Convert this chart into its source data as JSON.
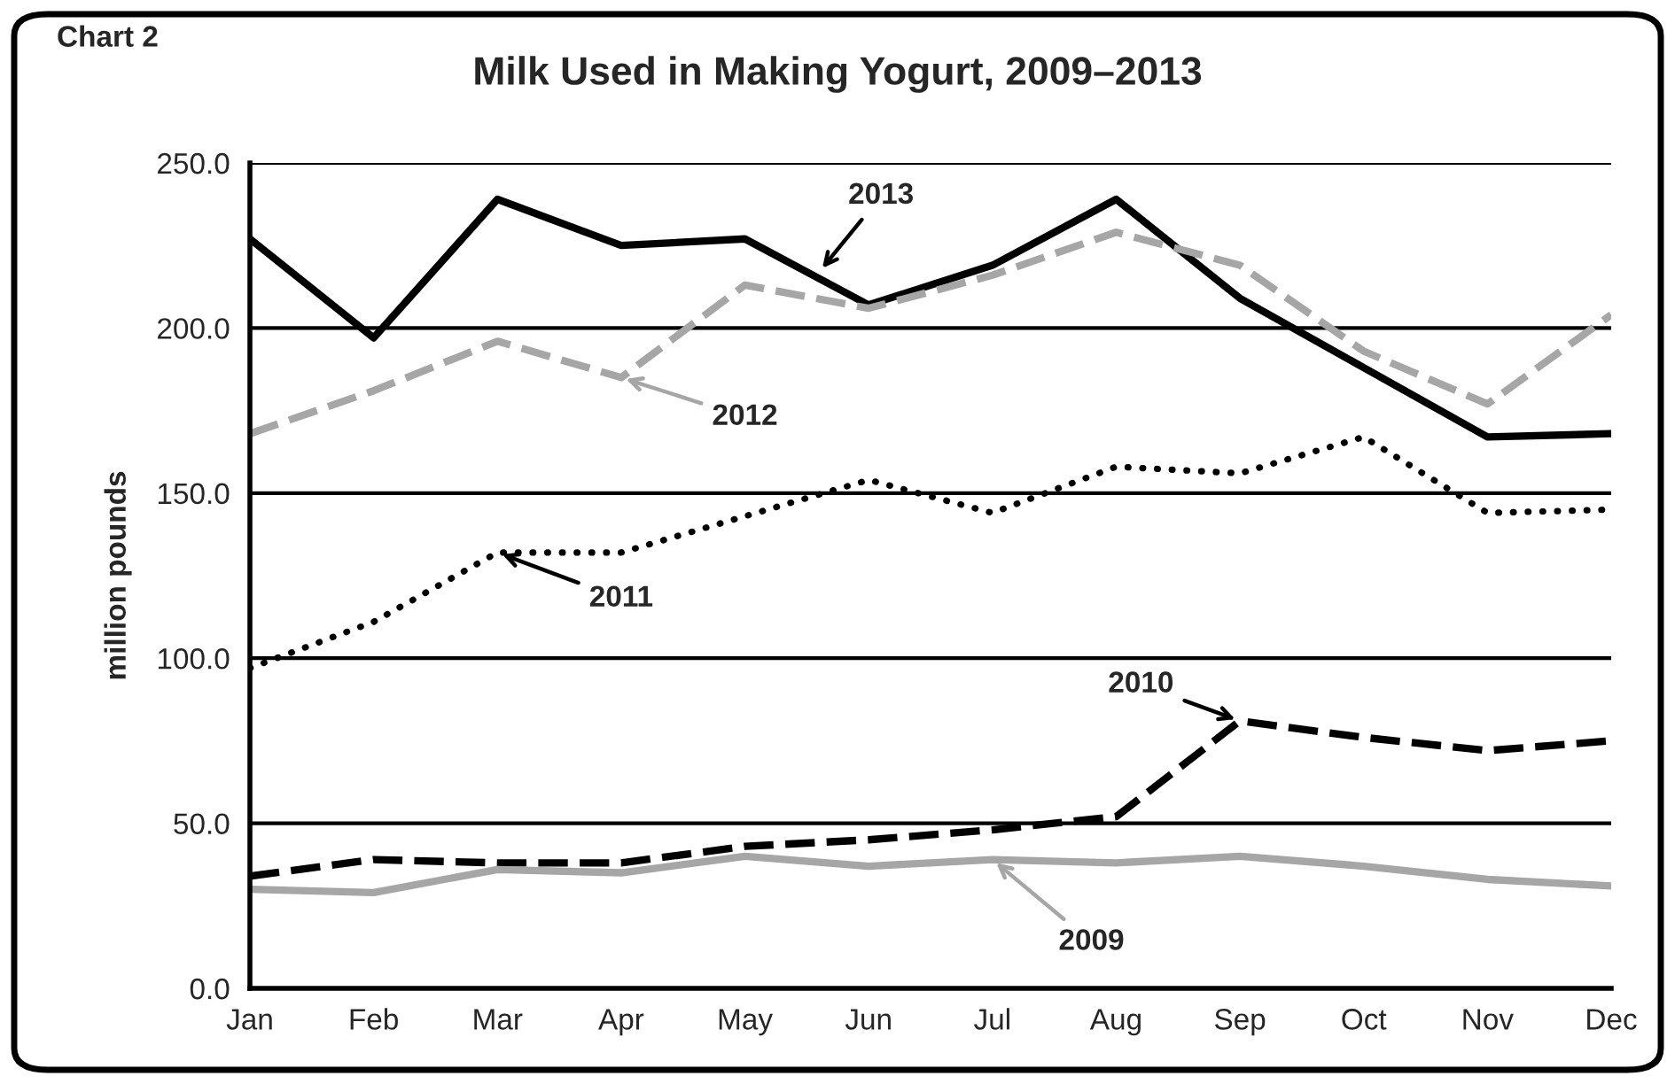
{
  "chart_data": {
    "type": "line",
    "title": "Milk Used in Making Yogurt, 2009–2013",
    "ylabel": "million pounds",
    "annotations": [
      "Chart 2"
    ],
    "categories": [
      "Jan",
      "Feb",
      "Mar",
      "Apr",
      "May",
      "Jun",
      "Jul",
      "Aug",
      "Sep",
      "Oct",
      "Nov",
      "Dec"
    ],
    "series": [
      {
        "name": "2013",
        "color": "#000000",
        "line_style": "solid",
        "values": [
          227,
          197,
          239,
          225,
          227,
          207,
          219,
          239,
          209,
          188,
          167,
          168
        ]
      },
      {
        "name": "2012",
        "color": "#a6a6a6",
        "line_style": "dashed",
        "values": [
          168,
          181,
          196,
          185,
          213,
          206,
          216,
          229,
          219,
          193,
          177,
          204
        ]
      },
      {
        "name": "2011",
        "color": "#000000",
        "line_style": "dotted",
        "values": [
          97,
          111,
          132,
          132,
          143,
          154,
          144,
          158,
          156,
          167,
          144,
          145
        ]
      },
      {
        "name": "2010",
        "color": "#000000",
        "line_style": "dashed",
        "values": [
          34,
          39,
          38,
          38,
          43,
          45,
          48,
          52,
          81,
          76,
          72,
          75
        ]
      },
      {
        "name": "2009",
        "color": "#a6a6a6",
        "line_style": "solid",
        "values": [
          30,
          29,
          36,
          35,
          40,
          37,
          39,
          38,
          40,
          37,
          33,
          31
        ]
      }
    ],
    "ylim": [
      0,
      250
    ],
    "yticks": [
      {
        "value": 0,
        "label": "0.0"
      },
      {
        "value": 50,
        "label": "50.0"
      },
      {
        "value": 100,
        "label": "100.0"
      },
      {
        "value": 150,
        "label": "150.0"
      },
      {
        "value": 200,
        "label": "200.0"
      },
      {
        "value": 250,
        "label": "250.0"
      }
    ],
    "grid": "y",
    "marker": "none"
  }
}
